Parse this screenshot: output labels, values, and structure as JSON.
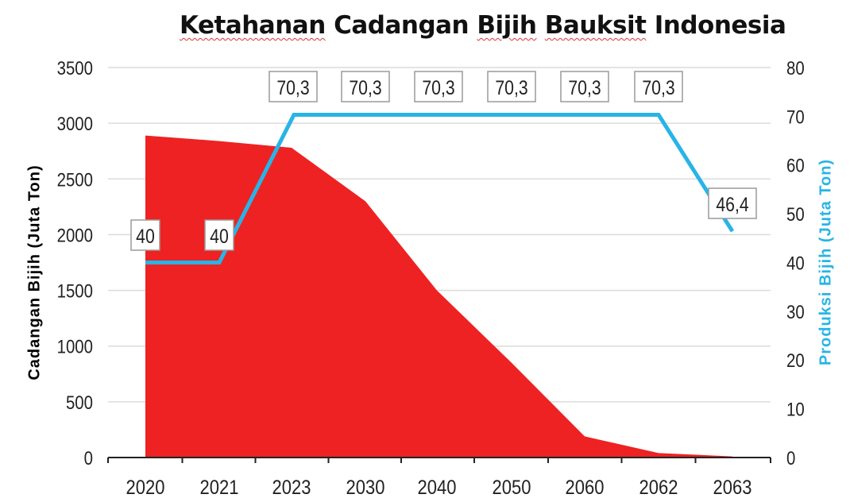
{
  "title_parts": [
    "Ketahanan",
    "Cadangan",
    "Bijih",
    "Bauksit",
    "Indonesia"
  ],
  "chart_data": {
    "type": "area+line",
    "title": "Ketahanan Cadangan Bijih Bauksit Indonesia",
    "categories": [
      "2020",
      "2021",
      "2023",
      "2030",
      "2040",
      "2050",
      "2060",
      "2062",
      "2063"
    ],
    "left_axis": {
      "label": "Cadangan Bijih (Juta Ton)",
      "ylim": [
        0,
        3500
      ],
      "ticks": [
        0,
        500,
        1000,
        1500,
        2000,
        2500,
        3000,
        3500
      ]
    },
    "right_axis": {
      "label": "Produksi Bijih (Juta Ton)",
      "ylim": [
        0,
        80
      ],
      "ticks": [
        0,
        10,
        20,
        30,
        40,
        50,
        60,
        70,
        80
      ]
    },
    "grid": true,
    "series": [
      {
        "kind": "area",
        "axis": "left",
        "color": "#ee2222",
        "values": [
          2890,
          2840,
          2780,
          2300,
          1500,
          850,
          190,
          40,
          10
        ]
      },
      {
        "kind": "line",
        "axis": "right",
        "color": "#28b4e6",
        "values": [
          40,
          40,
          70.3,
          70.3,
          70.3,
          70.3,
          70.3,
          70.3,
          46.4
        ],
        "labels": [
          "40",
          "40",
          "70,3",
          "70,3",
          "70,3",
          "70,3",
          "70,3",
          "70,3",
          "46,4"
        ]
      }
    ]
  }
}
